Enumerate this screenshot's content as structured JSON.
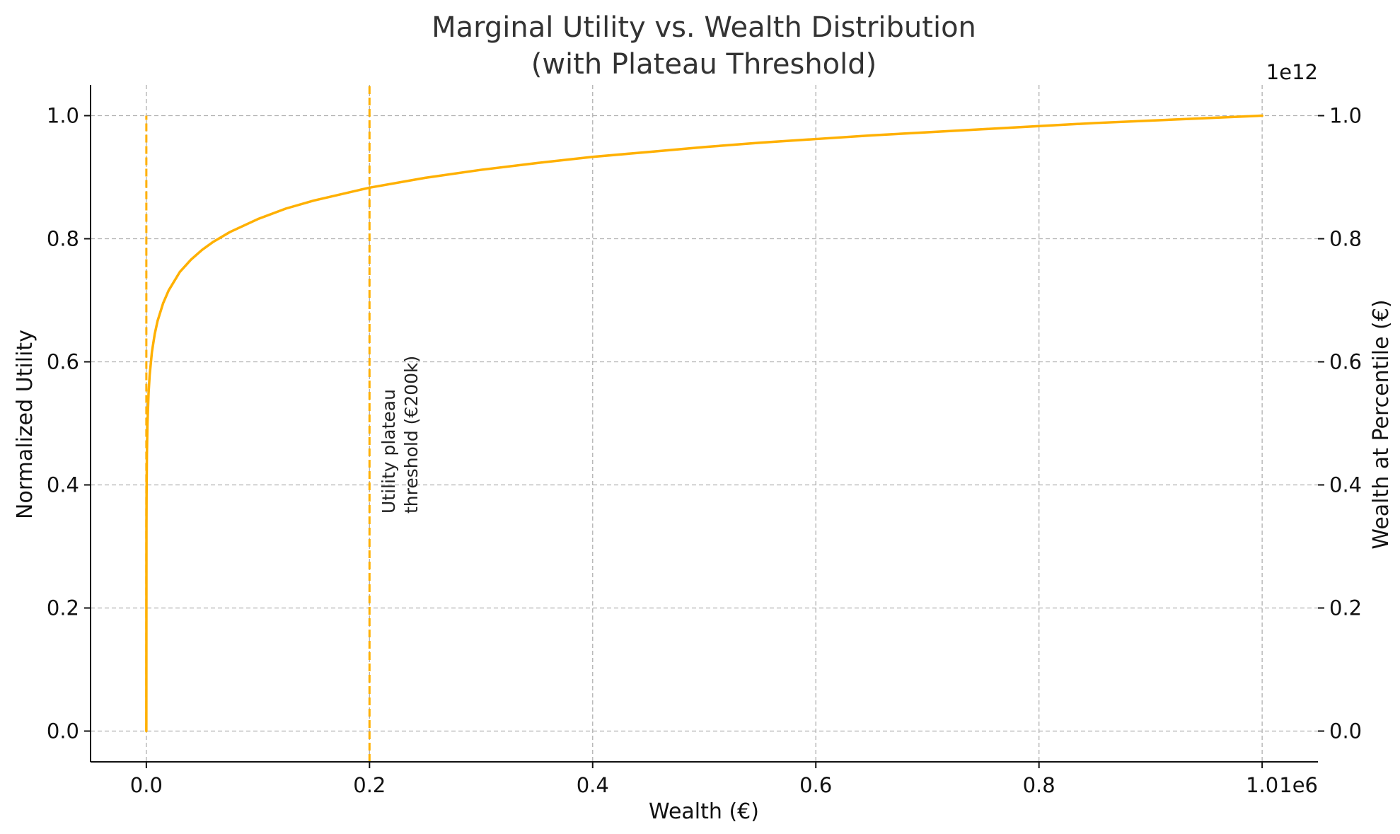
{
  "chart_data": {
    "type": "line",
    "title": "Marginal Utility vs. Wealth Distribution",
    "subtitle": "(with Plateau Threshold)",
    "xlabel": "Wealth (€)",
    "ylabel": "Normalized Utility",
    "y2label": "Wealth at Percentile (€)",
    "x_offset_label": "1e6",
    "y2_offset_label": "1e12",
    "xlim": [
      -50000,
      1050000
    ],
    "ylim": [
      -0.05,
      1.05
    ],
    "y2lim": [
      -0.05,
      1.05
    ],
    "x_ticks": [
      {
        "value": 0,
        "label": "0.0"
      },
      {
        "value": 200000,
        "label": "0.2"
      },
      {
        "value": 400000,
        "label": "0.4"
      },
      {
        "value": 600000,
        "label": "0.6"
      },
      {
        "value": 800000,
        "label": "0.8"
      },
      {
        "value": 1000000,
        "label": "1.0"
      }
    ],
    "y_ticks": [
      {
        "value": 0.0,
        "label": "0.0"
      },
      {
        "value": 0.2,
        "label": "0.2"
      },
      {
        "value": 0.4,
        "label": "0.4"
      },
      {
        "value": 0.6,
        "label": "0.6"
      },
      {
        "value": 0.8,
        "label": "0.8"
      },
      {
        "value": 1.0,
        "label": "1.0"
      }
    ],
    "y2_ticks": [
      {
        "value": 0.0,
        "label": "0.0"
      },
      {
        "value": 0.2,
        "label": "0.2"
      },
      {
        "value": 0.4,
        "label": "0.4"
      },
      {
        "value": 0.6,
        "label": "0.6"
      },
      {
        "value": 0.8,
        "label": "0.8"
      },
      {
        "value": 1.0,
        "label": "1.0"
      }
    ],
    "grid": true,
    "series": [
      {
        "color": "#FFB000",
        "x": [
          0,
          100,
          200,
          500,
          1000,
          2000,
          3000,
          5000,
          7500,
          10000,
          15000,
          20000,
          30000,
          40000,
          50000,
          60000,
          75000,
          100000,
          125000,
          150000,
          200000,
          250000,
          300000,
          350000,
          400000,
          450000,
          500000,
          550000,
          600000,
          650000,
          700000,
          750000,
          800000,
          850000,
          900000,
          950000,
          1000000
        ],
        "y": [
          0.0,
          0.333,
          0.383,
          0.449,
          0.499,
          0.549,
          0.579,
          0.616,
          0.645,
          0.666,
          0.695,
          0.716,
          0.746,
          0.766,
          0.782,
          0.795,
          0.811,
          0.832,
          0.849,
          0.862,
          0.883,
          0.899,
          0.912,
          0.923,
          0.933,
          0.941,
          0.949,
          0.956,
          0.962,
          0.968,
          0.973,
          0.978,
          0.983,
          0.988,
          0.992,
          0.996,
          1.0
        ]
      }
    ],
    "vertical_lines": [
      {
        "x": 0,
        "y_range": [
          0.0,
          1.0
        ],
        "color": "#FFB000",
        "style": "dashed"
      },
      {
        "x": 200000,
        "y_range": [
          -0.05,
          1.05
        ],
        "color": "#FFB000",
        "style": "dashed",
        "label": "threshold"
      }
    ],
    "annotation": {
      "x": 200000,
      "y": 0.4,
      "lines": [
        "Utility plateau",
        "threshold (€200k)"
      ],
      "rotation": 90
    }
  }
}
